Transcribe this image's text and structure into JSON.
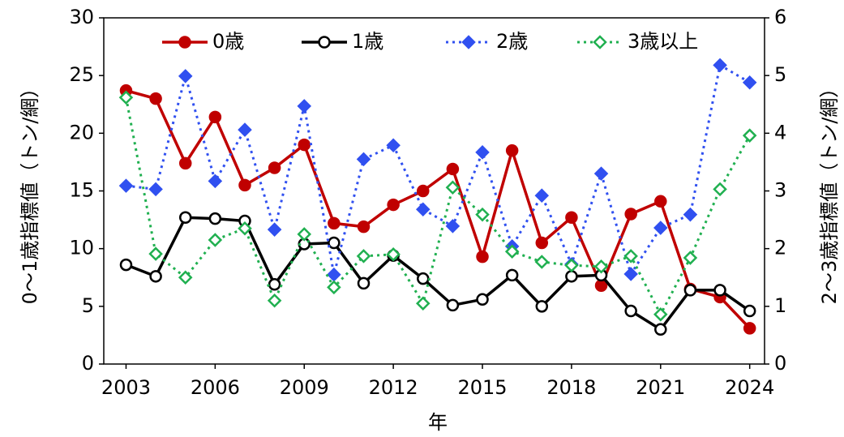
{
  "chart_data": {
    "type": "line",
    "x": [
      2003,
      2004,
      2005,
      2006,
      2007,
      2008,
      2009,
      2010,
      2011,
      2012,
      2013,
      2014,
      2015,
      2016,
      2017,
      2018,
      2019,
      2020,
      2021,
      2022,
      2023,
      2024
    ],
    "xlabel": "年",
    "ylabel": "0〜1歳指標値（トン/網）",
    "y2label": "2〜3歳指標値（トン/網）",
    "xlim": [
      2002.25,
      2024.5
    ],
    "xticks": [
      2003,
      2006,
      2009,
      2012,
      2015,
      2018,
      2021,
      2024
    ],
    "ylim": [
      0,
      30
    ],
    "yticks": [
      0,
      5,
      10,
      15,
      20,
      25,
      30
    ],
    "y2lim": [
      0,
      6
    ],
    "y2ticks": [
      0,
      1,
      2,
      3,
      4,
      5,
      6
    ],
    "legend": "top",
    "series": [
      {
        "name": "0歳",
        "color": "#c00000",
        "linestyle": "solid",
        "marker": "circle",
        "marker_fill": "#c00000",
        "axis": "y",
        "values": [
          23.7,
          23.0,
          17.4,
          21.4,
          15.5,
          17.0,
          19.0,
          12.2,
          11.9,
          13.8,
          15.0,
          16.9,
          9.3,
          18.5,
          10.5,
          12.7,
          6.8,
          13.0,
          14.1,
          6.5,
          5.8,
          3.1
        ]
      },
      {
        "name": "1歳",
        "color": "#000000",
        "linestyle": "solid",
        "marker": "circle",
        "marker_fill": "#ffffff",
        "axis": "y",
        "values": [
          8.6,
          7.6,
          12.7,
          12.6,
          12.4,
          6.9,
          10.4,
          10.5,
          7.0,
          9.4,
          7.4,
          5.1,
          5.6,
          7.7,
          5.0,
          7.6,
          7.7,
          4.6,
          3.0,
          6.4,
          6.4,
          4.6
        ]
      },
      {
        "name": "2歳",
        "color": "#3050f0",
        "linestyle": "dotted",
        "marker": "diamond",
        "marker_fill": "#3050f0",
        "axis": "y2",
        "values": [
          3.09,
          3.03,
          4.99,
          3.17,
          4.06,
          2.33,
          4.47,
          1.55,
          3.55,
          3.79,
          2.68,
          2.39,
          3.67,
          2.04,
          2.92,
          1.73,
          3.3,
          1.56,
          2.36,
          2.59,
          5.18,
          4.88
        ]
      },
      {
        "name": "3歳以上",
        "color": "#20b050",
        "linestyle": "dotted",
        "marker": "diamond",
        "marker_fill": "#ffffff",
        "axis": "y2",
        "values": [
          4.62,
          1.91,
          1.5,
          2.15,
          2.35,
          1.1,
          2.25,
          1.33,
          1.87,
          1.9,
          1.05,
          3.06,
          2.59,
          1.95,
          1.77,
          1.71,
          1.69,
          1.87,
          0.86,
          1.84,
          3.03,
          3.96
        ]
      }
    ]
  }
}
